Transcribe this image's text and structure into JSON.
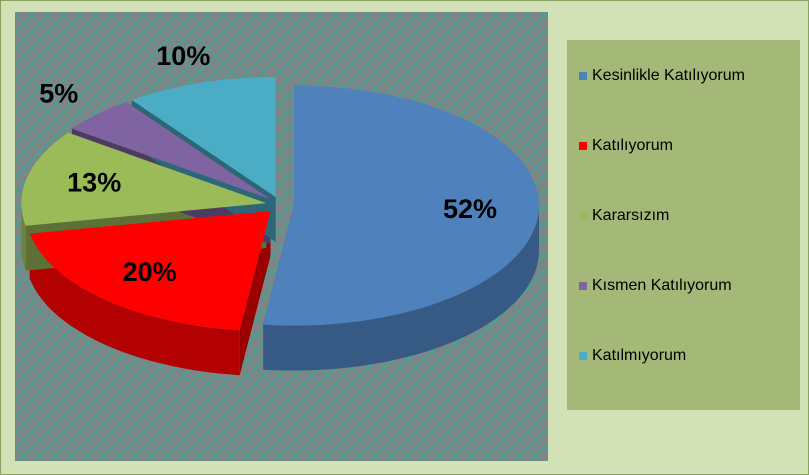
{
  "chart_data": {
    "type": "pie",
    "categories": [
      "Kesinlikle Katılıyorum",
      "Katılıyorum",
      "Kararsızım",
      "Kısmen Katılıyorum",
      "Katılmıyorum"
    ],
    "values": [
      52,
      20,
      13,
      5,
      10
    ],
    "value_labels": [
      "52%",
      "20%",
      "13%",
      "5%",
      "10%"
    ],
    "colors": [
      "#4f81bd",
      "#ff0000",
      "#9bbb59",
      "#8064a2",
      "#4bacc6"
    ],
    "legend": "right"
  }
}
